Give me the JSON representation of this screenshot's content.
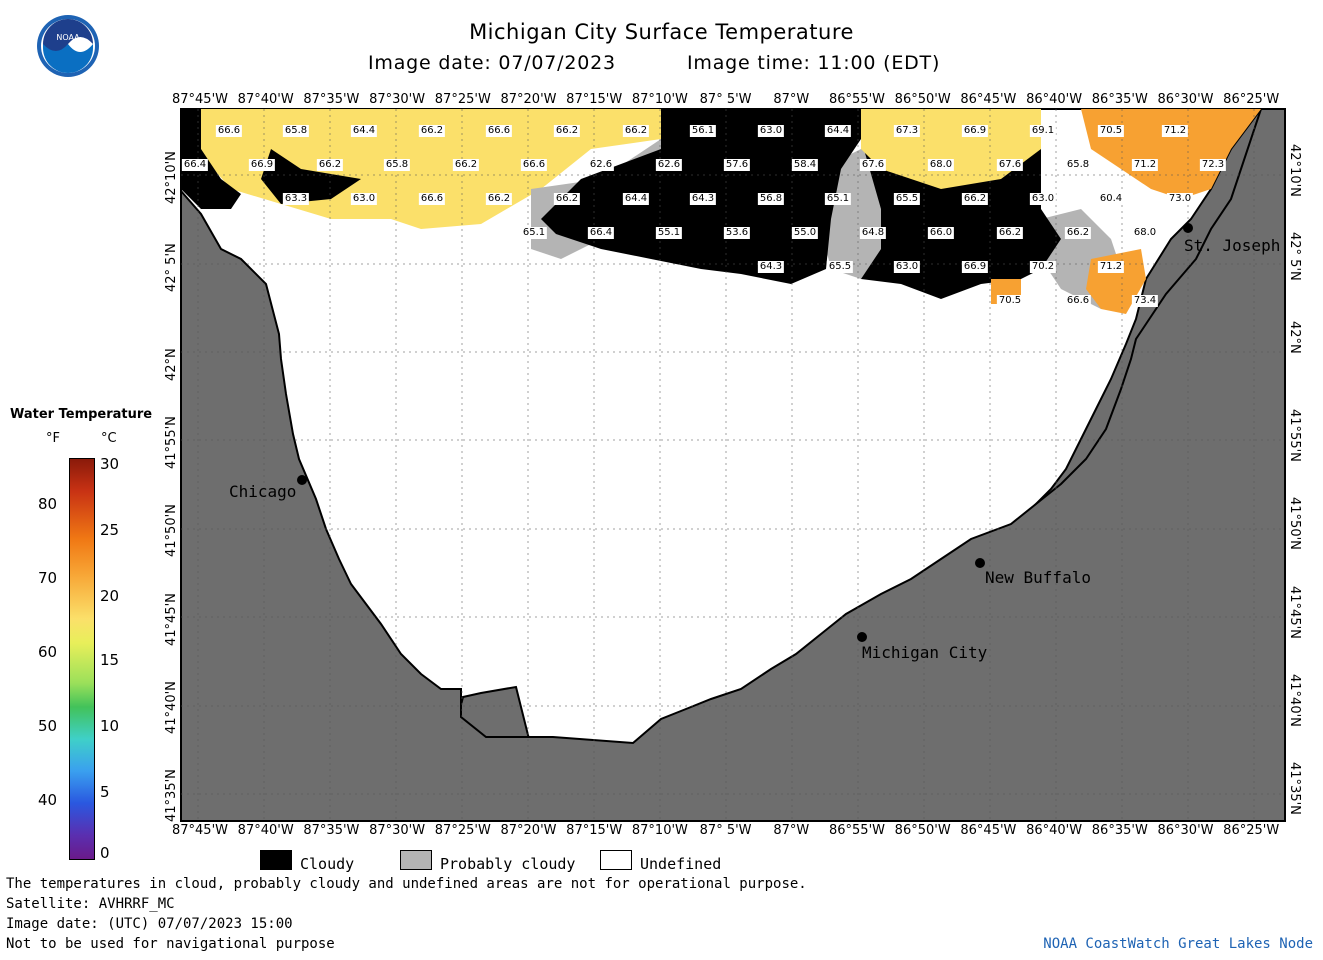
{
  "header": {
    "title": "Michigan City Surface Temperature",
    "image_date": "Image date: 07/07/2023",
    "image_time": "Image time: 11:00 (EDT)"
  },
  "logo": {
    "text": "NOAA"
  },
  "colors": {
    "land": "#6e6e6e",
    "cloudy": "#000000",
    "probably_cloudy": "#b4b4b4",
    "undefined": "#ffffff",
    "warm_66": "#fbe06a",
    "warm_72": "#f7a132"
  },
  "axes": {
    "lon_labels": [
      "87°45'W",
      "87°40'W",
      "87°35'W",
      "87°30'W",
      "87°25'W",
      "87°20'W",
      "87°15'W",
      "87°10'W",
      "87° 5'W",
      "87°W",
      "86°55'W",
      "86°50'W",
      "86°45'W",
      "86°40'W",
      "86°35'W",
      "86°30'W",
      "86°25'W"
    ],
    "lat_labels": [
      "42°10'N",
      "42° 5'N",
      "42°N",
      "41°55'N",
      "41°50'N",
      "41°45'N",
      "41°40'N",
      "41°35'N"
    ]
  },
  "cities": {
    "chicago": "Chicago",
    "st_joseph": "St. Joseph",
    "new_buffalo": "New Buffalo",
    "michigan_city": "Michigan City"
  },
  "legend": {
    "title": "Water Temperature",
    "unit_f": "°F",
    "unit_c": "°C",
    "f_ticks": [
      "80",
      "70",
      "60",
      "50",
      "40"
    ],
    "c_ticks": [
      "30",
      "25",
      "20",
      "15",
      "10",
      "5",
      "0"
    ]
  },
  "key": {
    "cloudy": "Cloudy",
    "probably_cloudy": "Probably cloudy",
    "undefined": "Undefined"
  },
  "footer": {
    "line1": "The temperatures in cloud, probably cloudy and undefined areas are not for operational purpose.",
    "line2": "Satellite: AVHRRF_MC",
    "line3": "Image date: (UTC) 07/07/2023  15:00",
    "line4": "Not to be used for navigational purpose",
    "credit": "NOAA CoastWatch Great Lakes Node"
  },
  "temperature_labels": [
    "66.6",
    "65.8",
    "64.4",
    "66.2",
    "66.6",
    "66.2",
    "66.2",
    "56.1",
    "63.0",
    "64.4",
    "67.3",
    "66.9",
    "69.1",
    "70.5",
    "71.2",
    "66.4",
    "66.9",
    "66.2",
    "65.8",
    "66.2",
    "66.6",
    "62.6",
    "62.6",
    "57.6",
    "58.4",
    "67.6",
    "68.0",
    "67.6",
    "65.8",
    "71.2",
    "72.3",
    "63.3",
    "63.0",
    "66.6",
    "66.2",
    "66.2",
    "64.4",
    "64.3",
    "56.8",
    "65.1",
    "65.5",
    "66.2",
    "63.0",
    "60.4",
    "73.0",
    "65.1",
    "66.4",
    "55.1",
    "53.6",
    "55.0",
    "64.8",
    "66.0",
    "66.2",
    "66.2",
    "68.0",
    "64.3",
    "65.5",
    "63.0",
    "66.9",
    "70.2",
    "71.2",
    "70.5",
    "66.6",
    "73.4"
  ]
}
